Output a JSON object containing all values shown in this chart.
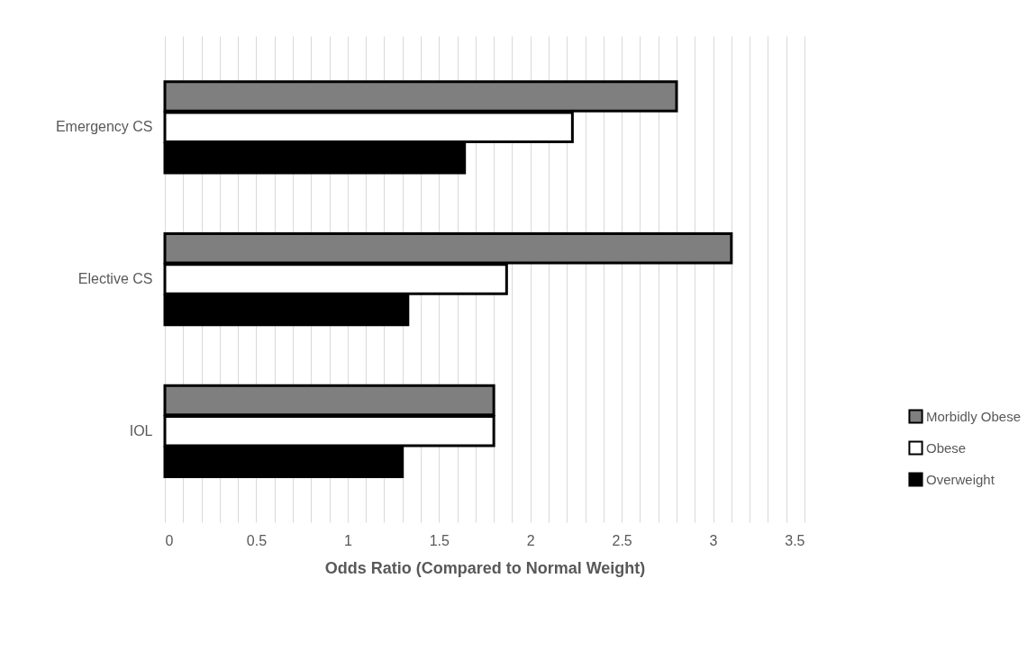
{
  "chart_data": {
    "type": "bar",
    "orientation": "horizontal",
    "xlabel": "Odds Ratio (Compared to Normal Weight)",
    "categories": [
      "Emergency CS",
      "Elective CS",
      "IOL"
    ],
    "series": [
      {
        "name": "Morbidly Obese",
        "color": "#7f7f7f",
        "values": [
          2.8,
          3.1,
          1.8
        ]
      },
      {
        "name": "Obese",
        "color": "#ffffff",
        "values": [
          2.23,
          1.87,
          1.8
        ]
      },
      {
        "name": "Overweight",
        "color": "#000000",
        "values": [
          1.64,
          1.33,
          1.3
        ]
      }
    ],
    "xlim": [
      0,
      3.5
    ],
    "xticks": [
      0,
      {
        "value": 0.1,
        "label": null
      },
      {
        "value": 0.2,
        "label": null
      },
      {
        "value": 0.3,
        "label": null
      },
      {
        "value": 0.4,
        "label": null
      },
      0.5,
      {
        "value": 0.6,
        "label": null
      },
      {
        "value": 0.7,
        "label": null
      },
      {
        "value": 0.8,
        "label": null
      },
      {
        "value": 0.9,
        "label": null
      },
      1,
      {
        "value": 1.1,
        "label": null
      },
      {
        "value": 1.2,
        "label": null
      },
      {
        "value": 1.3,
        "label": null
      },
      {
        "value": 1.4,
        "label": null
      },
      1.5,
      {
        "value": 1.6,
        "label": null
      },
      {
        "value": 1.7,
        "label": null
      },
      {
        "value": 1.8,
        "label": null
      },
      {
        "value": 1.9,
        "label": null
      },
      2,
      {
        "value": 2.1,
        "label": null
      },
      {
        "value": 2.2,
        "label": null
      },
      {
        "value": 2.3,
        "label": null
      },
      {
        "value": 2.4,
        "label": null
      },
      2.5,
      {
        "value": 2.6,
        "label": null
      },
      {
        "value": 2.7,
        "label": null
      },
      {
        "value": 2.8,
        "label": null
      },
      {
        "value": 2.9,
        "label": null
      },
      3,
      {
        "value": 3.1,
        "label": null
      },
      {
        "value": 3.2,
        "label": null
      },
      {
        "value": 3.3,
        "label": null
      },
      {
        "value": 3.4,
        "label": null
      },
      3.5
    ],
    "grid": "x",
    "legend": "right"
  }
}
